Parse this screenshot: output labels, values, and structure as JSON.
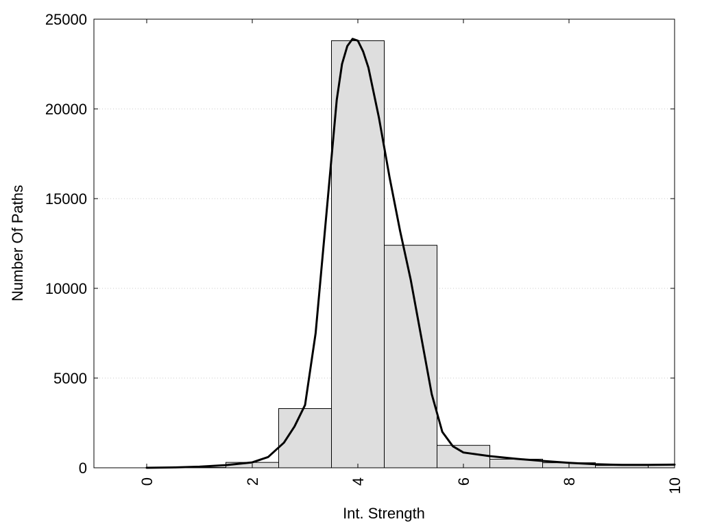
{
  "chart_data": {
    "type": "bar",
    "title": "",
    "xlabel": "Int. Strength",
    "ylabel": "Number Of Paths",
    "xlim": [
      -1,
      10
    ],
    "ylim": [
      0,
      25000
    ],
    "x_ticks": [
      0,
      2,
      4,
      6,
      8,
      10
    ],
    "y_ticks": [
      0,
      5000,
      10000,
      15000,
      20000,
      25000
    ],
    "grid": "horizontal dotted",
    "bar_width": 1,
    "bars": [
      {
        "x": 0,
        "value": 0
      },
      {
        "x": 1,
        "value": 20
      },
      {
        "x": 2,
        "value": 300
      },
      {
        "x": 3,
        "value": 3300
      },
      {
        "x": 4,
        "value": 23800
      },
      {
        "x": 5,
        "value": 12400
      },
      {
        "x": 6,
        "value": 1250
      },
      {
        "x": 7,
        "value": 480
      },
      {
        "x": 8,
        "value": 280
      },
      {
        "x": 9,
        "value": 130
      },
      {
        "x": 10,
        "value": 180
      }
    ],
    "fit_curve": {
      "x": [
        0,
        0.5,
        1,
        1.5,
        2,
        2.3,
        2.6,
        2.8,
        3,
        3.2,
        3.4,
        3.6,
        3.7,
        3.8,
        3.9,
        4,
        4.1,
        4.2,
        4.4,
        4.6,
        4.8,
        5,
        5.2,
        5.4,
        5.6,
        5.8,
        6,
        6.5,
        7,
        7.5,
        8,
        8.5,
        9,
        9.5,
        10
      ],
      "y": [
        0,
        20,
        60,
        150,
        300,
        600,
        1400,
        2300,
        3500,
        7500,
        14000,
        20500,
        22500,
        23500,
        23900,
        23800,
        23200,
        22300,
        19500,
        16200,
        13200,
        10500,
        7300,
        4100,
        2000,
        1200,
        850,
        650,
        500,
        380,
        280,
        200,
        160,
        165,
        175
      ]
    },
    "bar_color": "#dedede",
    "line_color": "#000000"
  }
}
